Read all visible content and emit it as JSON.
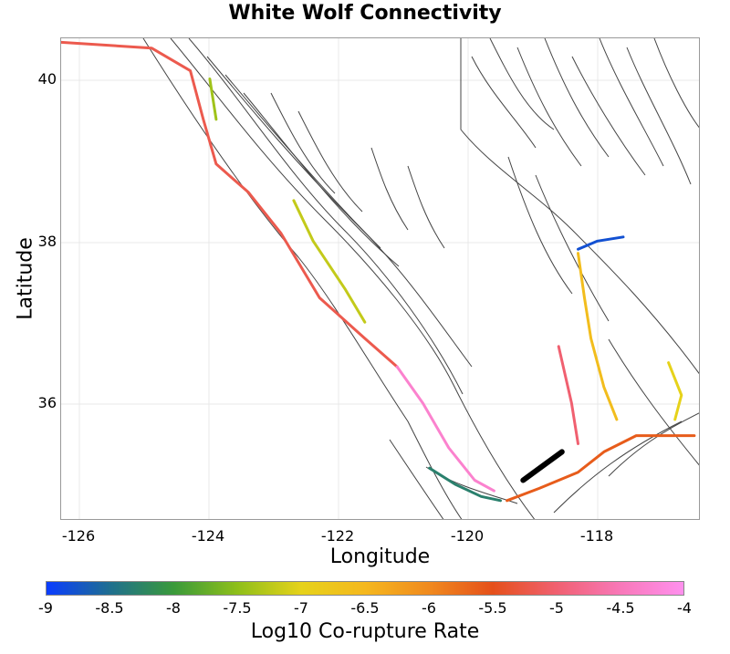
{
  "title": "White Wolf Connectivity",
  "xlabel": "Longitude",
  "ylabel": "Latitude",
  "x_ticks": [
    "-126",
    "-124",
    "-122",
    "-120",
    "-118"
  ],
  "y_ticks": [
    "40",
    "38",
    "36"
  ],
  "colorbar": {
    "label": "Log10 Co-rupture Rate",
    "ticks": [
      "-9",
      "-8.5",
      "-8",
      "-7.5",
      "-7",
      "-6.5",
      "-6",
      "-5.5",
      "-5",
      "-4.5",
      "-4"
    ],
    "range": [
      -9,
      -4
    ],
    "colors": [
      "#0a3cff",
      "#1f6f8f",
      "#3a9a3a",
      "#8fbf1a",
      "#e6d21a",
      "#f5b81e",
      "#f08a1e",
      "#e5501a",
      "#f06070",
      "#f878b8",
      "#ff90ee"
    ]
  },
  "map": {
    "lon_range": [
      -126.2,
      -116.3
    ],
    "lat_range": [
      34.55,
      40.5
    ],
    "background_fault_color": "#333333",
    "source_fault_color": "#000000"
  },
  "chart_data": {
    "type": "map",
    "title": "White Wolf Connectivity",
    "xlabel": "Longitude",
    "ylabel": "Latitude",
    "xlim": [
      -126.2,
      -116.3
    ],
    "ylim": [
      34.55,
      40.5
    ],
    "grid": true,
    "colorbar_range": [
      -9,
      -4
    ],
    "source_fault": {
      "lon": [
        -119.05,
        -118.45
      ],
      "lat": [
        35.05,
        35.4
      ]
    },
    "colored_faults": [
      {
        "lon": [
          -126.2,
          -124.8,
          -124.2,
          -124.0,
          -123.8,
          -123.3,
          -122.8,
          -122.2,
          -121.5,
          -121.0
        ],
        "lat": [
          40.45,
          40.38,
          40.1,
          39.5,
          38.95,
          38.6,
          38.1,
          37.3,
          36.8,
          36.45
        ],
        "rate": -5.2
      },
      {
        "lon": [
          -121.0,
          -120.6,
          -120.2,
          -119.8,
          -119.5
        ],
        "lat": [
          36.45,
          36.0,
          35.45,
          35.05,
          34.92
        ],
        "rate": -4.3
      },
      {
        "lon": [
          -119.3,
          -118.8,
          -118.2,
          -117.8,
          -117.3,
          -116.4
        ],
        "lat": [
          34.8,
          34.95,
          35.15,
          35.4,
          35.6,
          35.6
        ],
        "rate": -5.6
      },
      {
        "lon": [
          -118.2,
          -118.1,
          -118.0,
          -117.8,
          -117.6
        ],
        "lat": [
          37.85,
          37.3,
          36.8,
          36.2,
          35.8
        ],
        "rate": -6.6
      },
      {
        "lon": [
          -118.2,
          -117.9,
          -117.5
        ],
        "lat": [
          37.9,
          38.0,
          38.05
        ],
        "rate": -8.8
      },
      {
        "lon": [
          -118.5,
          -118.3,
          -118.2
        ],
        "lat": [
          36.7,
          36.0,
          35.5
        ],
        "rate": -5.0
      },
      {
        "lon": [
          -120.5,
          -120.1,
          -119.7,
          -119.4
        ],
        "lat": [
          35.2,
          35.0,
          34.85,
          34.8
        ],
        "rate": -8.3
      },
      {
        "lon": [
          -122.6,
          -122.3,
          -121.8,
          -121.5
        ],
        "lat": [
          38.5,
          38.0,
          37.4,
          37.0
        ],
        "rate": -7.2
      },
      {
        "lon": [
          -123.9,
          -123.8
        ],
        "lat": [
          40.0,
          39.5
        ],
        "rate": -7.4
      },
      {
        "lon": [
          -116.8,
          -116.6,
          -116.7
        ],
        "lat": [
          36.5,
          36.1,
          35.8
        ],
        "rate": -7.0
      }
    ]
  }
}
